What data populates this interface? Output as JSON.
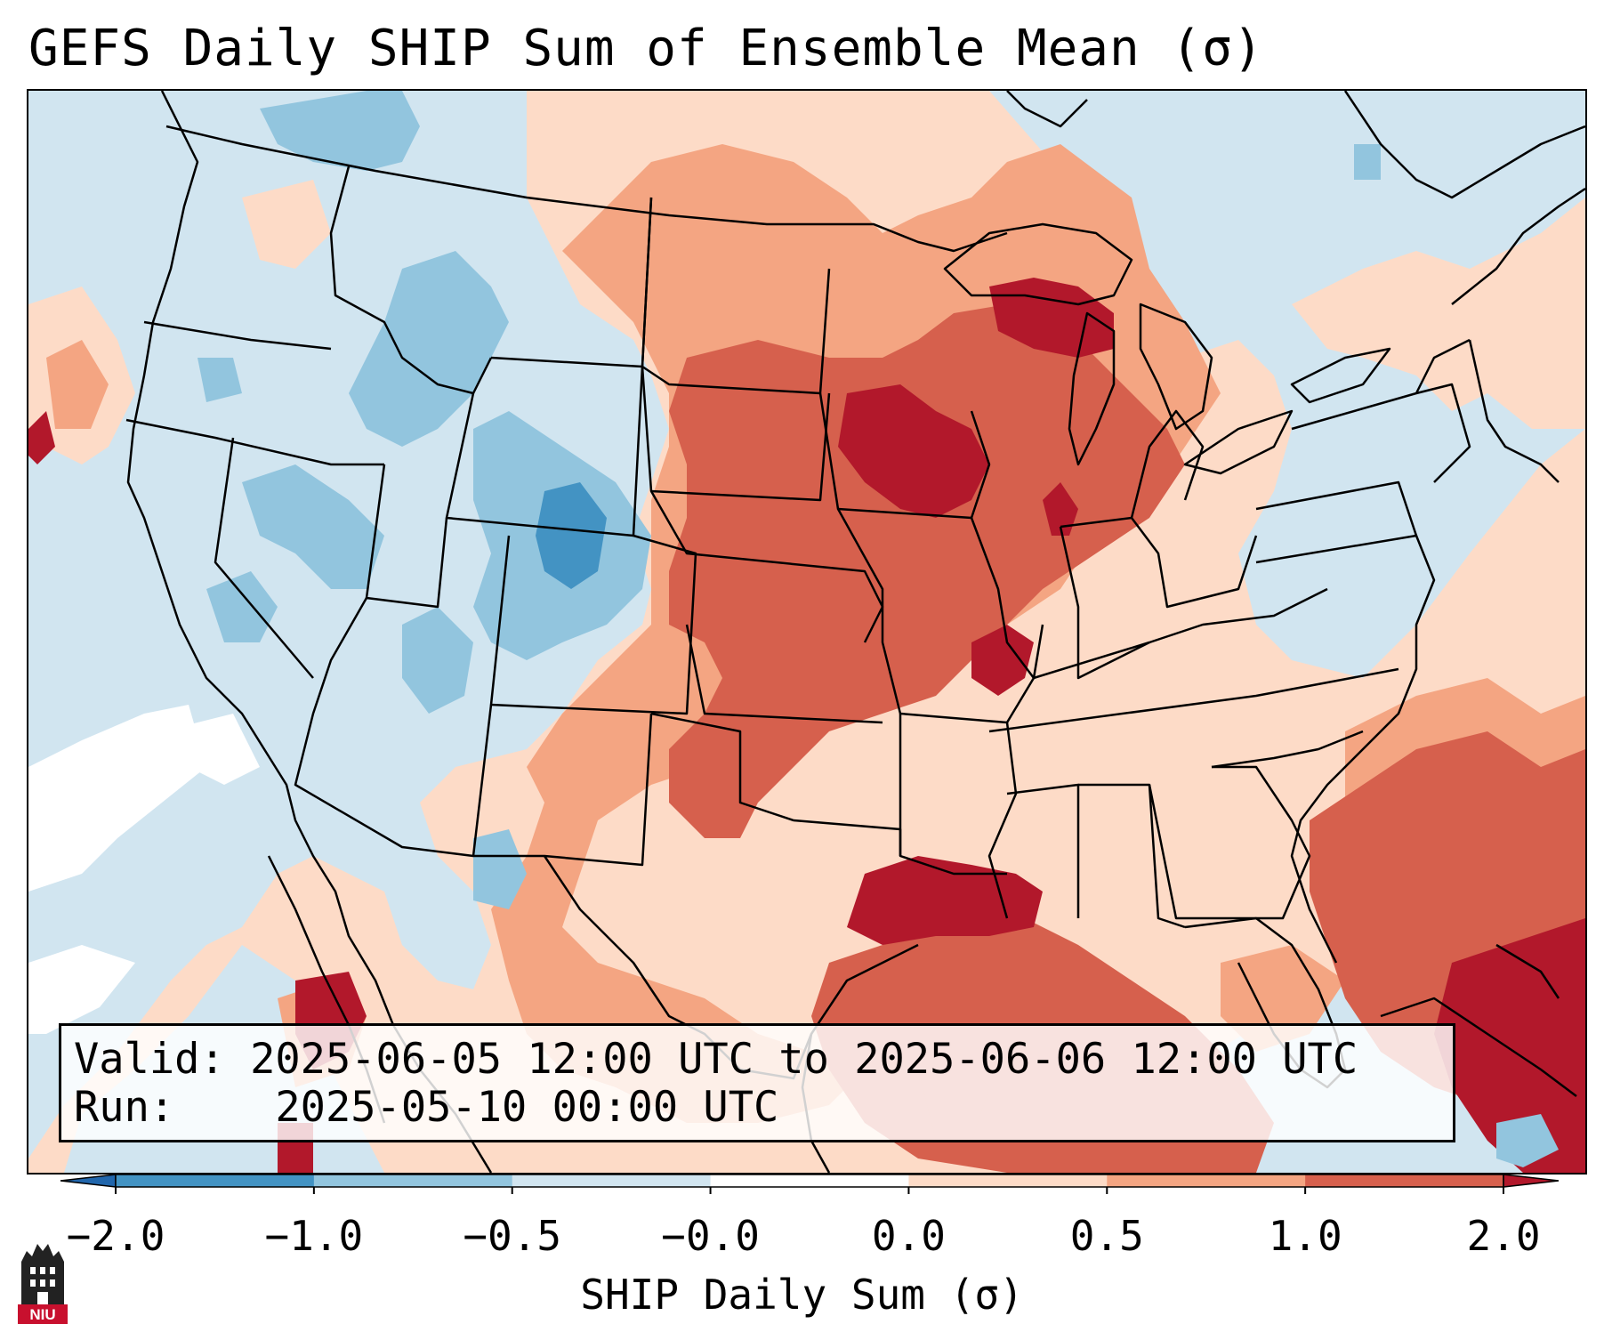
{
  "title": "GEFS Daily SHIP Sum of Ensemble Mean (σ)",
  "info": {
    "valid_label": "Valid:",
    "valid_value": "2025-06-05 12:00 UTC to 2025-06-06 12:00 UTC",
    "run_label": "Run:",
    "run_value": "2025-05-10 00:00 UTC"
  },
  "colorbar": {
    "label": "SHIP Daily Sum (σ)",
    "ticks": [
      "−2.0",
      "−1.0",
      "−0.5",
      "−0.0",
      "0.0",
      "0.5",
      "1.0",
      "2.0"
    ],
    "colors": [
      "#2166ac",
      "#4393c3",
      "#92c5de",
      "#d1e5f0",
      "#ffffff",
      "#fddbc7",
      "#f4a582",
      "#d6604d",
      "#b2182b"
    ],
    "extend": "both"
  },
  "logo": {
    "text": "NIU",
    "icon": "university-tower-icon"
  },
  "map_layers": {
    "region": "Continental United States with Mexico, Gulf of Mexico and Caribbean",
    "boundaries": [
      "state-borders",
      "coastlines",
      "country-borders",
      "great-lakes"
    ]
  }
}
